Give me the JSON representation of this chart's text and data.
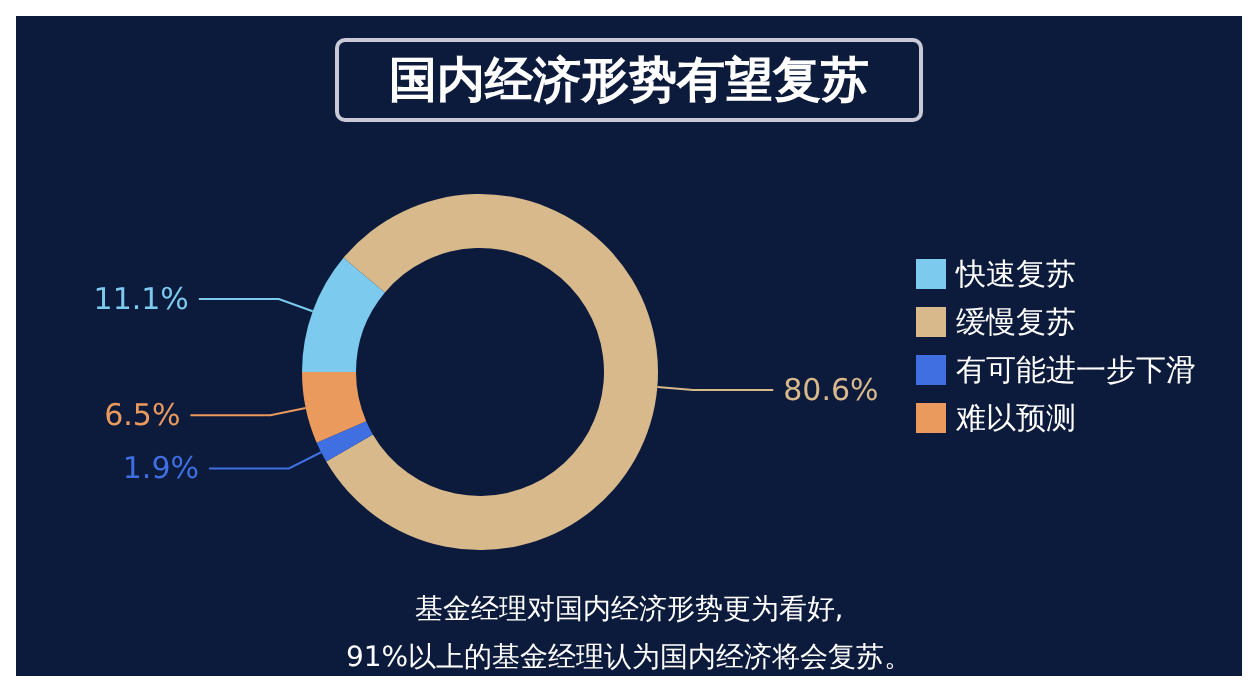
{
  "chart_data": {
    "type": "donut",
    "title": "国内经济形势有望复苏",
    "categories": [
      "快速复苏",
      "缓慢复苏",
      "有可能进一步下滑",
      "难以预测"
    ],
    "values": [
      11.1,
      80.6,
      1.9,
      6.5
    ],
    "colors": [
      "#7ccbef",
      "#d8b98c",
      "#3f6fe0",
      "#eb9a5e"
    ],
    "value_labels": [
      "11.1%",
      "80.6%",
      "1.9%",
      "6.5%"
    ],
    "legend": "right",
    "annotations": [
      "基金经理对国内经济形势更为看好,",
      "91%以上的基金经理认为国内经济将会复苏。"
    ]
  }
}
